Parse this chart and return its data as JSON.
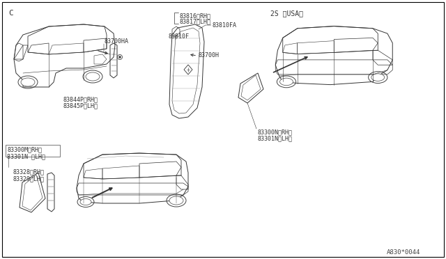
{
  "bg": "#ffffff",
  "border": "#000000",
  "tc": "#333333",
  "lc": "#444444",
  "lw": 0.6,
  "fs": 6.0,
  "fs_variant": 7.0,
  "diagram_code": "A830*0044",
  "labels": {
    "C": "C",
    "USA": "2S 〈USA〉",
    "l83700HA": "83700HA",
    "l83844P": "83844P〈RH〉",
    "l83845P": "83845P〈LH〉",
    "l83816": "83816〈RH〉",
    "l83817": "83817〈LH〉",
    "l83810F": "83810F",
    "l83810FA": "83810FA",
    "l83700H": "83700H",
    "l83300M": "83300M〈RH〉",
    "l83301N_a": "83301N 〈LH〉",
    "l83328": "83328〈RH〉",
    "l83329": "83329〈LH〉",
    "l83300N": "83300N〈RH〉",
    "l83301N_b": "83301N〈LH〉"
  }
}
